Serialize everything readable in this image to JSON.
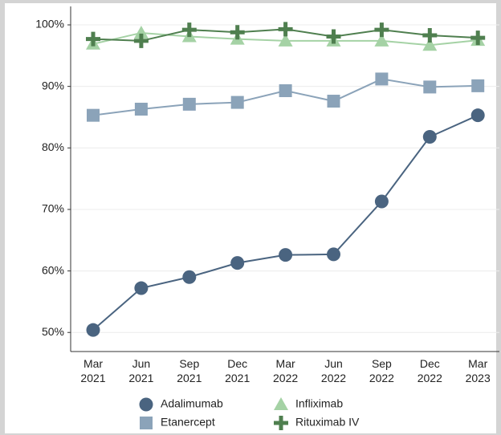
{
  "chart_data": {
    "type": "line",
    "categories": [
      "Mar 2021",
      "Jun 2021",
      "Sep 2021",
      "Dec 2021",
      "Mar 2022",
      "Jun 2022",
      "Sep 2022",
      "Dec 2022",
      "Mar 2023"
    ],
    "series": [
      {
        "name": "Adalimumab",
        "color": "#4a6480",
        "marker": "circle",
        "values": [
          50.4,
          57.2,
          59.0,
          61.3,
          62.6,
          62.7,
          71.3,
          81.8,
          85.3
        ]
      },
      {
        "name": "Etanercept",
        "color": "#8ba3b9",
        "marker": "square",
        "values": [
          85.3,
          86.3,
          87.1,
          87.4,
          89.3,
          87.6,
          91.2,
          89.9,
          90.1
        ]
      },
      {
        "name": "Infliximab",
        "color": "#a5d2a5",
        "marker": "triangle",
        "values": [
          96.9,
          98.7,
          98.1,
          97.7,
          97.4,
          97.4,
          97.4,
          96.7,
          97.5
        ]
      },
      {
        "name": "Rituximab IV",
        "color": "#4f7f4f",
        "marker": "plus",
        "values": [
          97.7,
          97.4,
          99.2,
          98.8,
          99.3,
          98.1,
          99.2,
          98.3,
          97.9
        ]
      }
    ],
    "ylim": [
      46.9,
      103
    ],
    "yticks": [
      {
        "value": 50,
        "label": "50%"
      },
      {
        "value": 60,
        "label": "60%"
      },
      {
        "value": 70,
        "label": "70%"
      },
      {
        "value": 80,
        "label": "80%"
      },
      {
        "value": 90,
        "label": "90%"
      },
      {
        "value": 100,
        "label": "100%"
      }
    ],
    "grid": true
  }
}
